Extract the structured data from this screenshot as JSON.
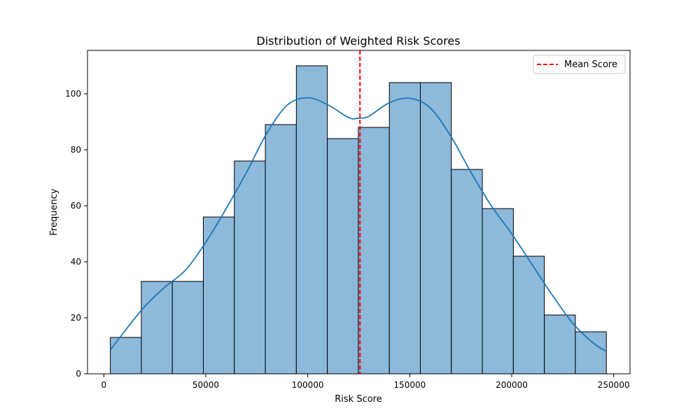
{
  "chart_data": {
    "type": "bar",
    "title": "Distribution of Weighted Risk Scores",
    "xlabel": "Risk Score",
    "ylabel": "Frequency",
    "xlim": [
      -8000,
      258000
    ],
    "ylim": [
      0,
      115.5
    ],
    "x_ticks": [
      0,
      50000,
      100000,
      150000,
      200000,
      250000
    ],
    "y_ticks": [
      0,
      20,
      40,
      60,
      80,
      100
    ],
    "bins": [
      {
        "x0": 3200,
        "x1": 18400,
        "count": 13
      },
      {
        "x0": 18400,
        "x1": 33600,
        "count": 33
      },
      {
        "x0": 33600,
        "x1": 48800,
        "count": 33
      },
      {
        "x0": 48800,
        "x1": 64000,
        "count": 56
      },
      {
        "x0": 64000,
        "x1": 79200,
        "count": 76
      },
      {
        "x0": 79200,
        "x1": 94400,
        "count": 89
      },
      {
        "x0": 94400,
        "x1": 109600,
        "count": 110
      },
      {
        "x0": 109600,
        "x1": 124800,
        "count": 84
      },
      {
        "x0": 124800,
        "x1": 140000,
        "count": 88
      },
      {
        "x0": 140000,
        "x1": 155200,
        "count": 104
      },
      {
        "x0": 155200,
        "x1": 170400,
        "count": 104
      },
      {
        "x0": 170400,
        "x1": 185600,
        "count": 73
      },
      {
        "x0": 185600,
        "x1": 200800,
        "count": 59
      },
      {
        "x0": 200800,
        "x1": 216000,
        "count": 42
      },
      {
        "x0": 216000,
        "x1": 231200,
        "count": 21
      },
      {
        "x0": 231200,
        "x1": 246400,
        "count": 15
      }
    ],
    "kde": {
      "x": [
        3200,
        10000,
        20000,
        30000,
        40000,
        50000,
        60000,
        70000,
        80000,
        90000,
        100000,
        110000,
        120000,
        125000,
        130000,
        140000,
        150000,
        160000,
        170000,
        180000,
        190000,
        200000,
        210000,
        220000,
        230000,
        240000,
        246400
      ],
      "y": [
        8.5,
        15,
        24,
        31,
        37,
        47,
        59,
        72,
        86,
        96,
        98.6,
        96,
        91.5,
        91.3,
        92,
        96.8,
        98.4,
        95,
        85,
        72,
        60,
        50,
        39,
        28,
        18,
        11,
        8
      ]
    },
    "mean_line": {
      "x": 125600,
      "label": "Mean Score",
      "color": "#ff0000"
    },
    "bar_color": "#8db9db",
    "edge_color": "#000000",
    "kde_color": "#1f77b4",
    "legend_placement": "top-right",
    "grid": false
  }
}
